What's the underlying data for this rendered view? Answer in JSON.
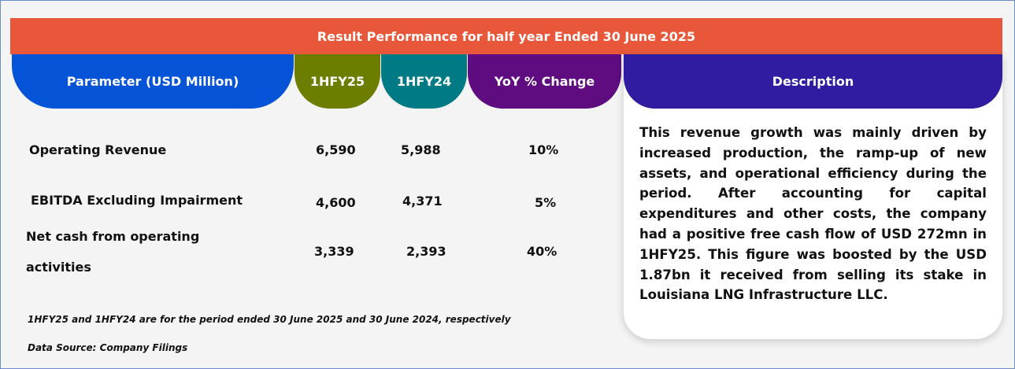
{
  "title": "Result Performance for half year Ended 30 June 2025",
  "headers": {
    "parameter": "Parameter (USD Million)",
    "col1": "1HFY25",
    "col2": "1HFY24",
    "col3": "YoY % Change",
    "description": "Description"
  },
  "rows": [
    {
      "parameter": "Operating Revenue",
      "v1": "6,590",
      "v2": "5,988",
      "yoy": "10%"
    },
    {
      "parameter": "EBITDA Excluding Impairment",
      "v1": "4,600",
      "v2": "4,371",
      "yoy": "5%"
    },
    {
      "parameter_line1": "Net cash from operating",
      "parameter_line2": "activities",
      "v1": "3,339",
      "v2": "2,393",
      "yoy": "40%"
    }
  ],
  "description": "This revenue growth was mainly driven by increased production, the ramp-up of new assets, and operational efficiency during the period. After accounting for capital expenditures and other costs, the company had a positive free cash flow of USD 272mn in 1HFY25. This figure was boosted by the USD 1.87bn it received from selling its stake in Louisiana LNG Infrastructure LLC.",
  "footnote": "1HFY25 and 1HFY24 are for the period ended 30 June 2025 and 30 June 2024, respectively",
  "source": "Data Source: Company Filings"
}
